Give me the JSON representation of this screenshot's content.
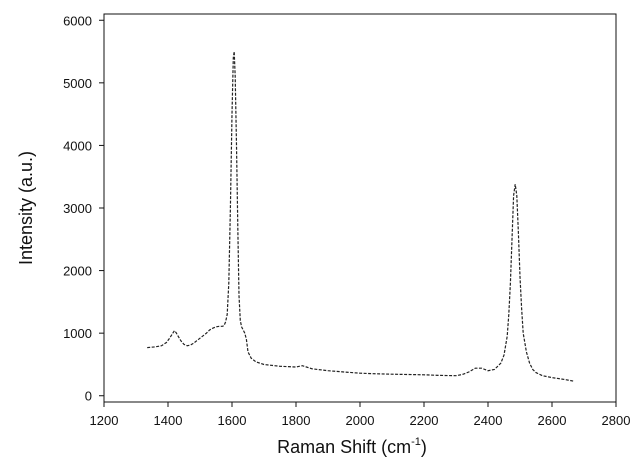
{
  "chart_data": {
    "type": "line",
    "title": "",
    "xlabel": "Raman Shift (cm",
    "xlabel_sup": "-1",
    "xlabel_suffix": ")",
    "ylabel": "Intensity (a.u.)",
    "xlim": [
      1200,
      2800
    ],
    "ylim": [
      -100,
      6100
    ],
    "xticks": [
      1200,
      1400,
      1600,
      1800,
      2000,
      2200,
      2400,
      2600,
      2800
    ],
    "yticks": [
      0,
      1000,
      2000,
      3000,
      4000,
      5000,
      6000
    ],
    "grid": false,
    "legend": "none",
    "line_color": "#222222",
    "series": [
      {
        "x": [
          1335,
          1360,
          1380,
          1395,
          1405,
          1415,
          1420,
          1425,
          1432,
          1440,
          1450,
          1460,
          1470,
          1480,
          1490,
          1500,
          1510,
          1520,
          1530,
          1540,
          1550,
          1560,
          1570,
          1575,
          1580,
          1585,
          1590,
          1595,
          1600,
          1604,
          1607,
          1610,
          1614,
          1618,
          1622,
          1626,
          1630,
          1635,
          1640,
          1645,
          1650,
          1660,
          1675,
          1700,
          1750,
          1800,
          1820,
          1850,
          1900,
          1950,
          2000,
          2050,
          2100,
          2150,
          2200,
          2250,
          2300,
          2320,
          2340,
          2360,
          2380,
          2400,
          2420,
          2440,
          2450,
          2460,
          2465,
          2470,
          2475,
          2480,
          2485,
          2490,
          2495,
          2500,
          2505,
          2510,
          2520,
          2530,
          2540,
          2550,
          2570,
          2600,
          2640,
          2670
        ],
        "y": [
          770,
          780,
          800,
          850,
          920,
          1000,
          1040,
          1010,
          950,
          880,
          820,
          800,
          810,
          840,
          880,
          920,
          960,
          1000,
          1050,
          1080,
          1100,
          1110,
          1110,
          1120,
          1180,
          1300,
          1800,
          3000,
          4500,
          5400,
          5500,
          5100,
          4000,
          2700,
          1600,
          1200,
          1100,
          1050,
          1000,
          900,
          700,
          600,
          540,
          500,
          470,
          460,
          480,
          430,
          400,
          380,
          360,
          350,
          345,
          340,
          335,
          325,
          320,
          340,
          380,
          440,
          440,
          400,
          420,
          520,
          650,
          950,
          1300,
          1800,
          2500,
          3200,
          3380,
          3200,
          2600,
          1900,
          1400,
          1000,
          700,
          520,
          420,
          370,
          320,
          290,
          260,
          230
        ]
      }
    ]
  }
}
